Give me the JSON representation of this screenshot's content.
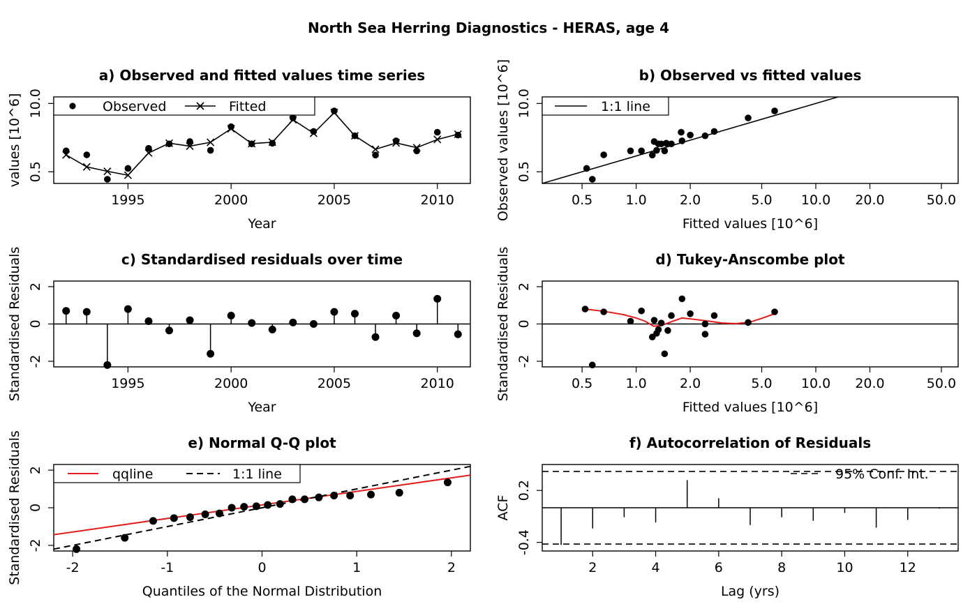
{
  "main_title": "North Sea Herring Diagnostics - HERAS, age 4",
  "chart_data": [
    {
      "id": "a",
      "type": "line",
      "title": "a) Observed and fitted values time series",
      "xlabel": "Year",
      "ylabel": "values [10^6]",
      "y_scale": "log",
      "xlim": [
        1991.4,
        2011.6
      ],
      "ylim": [
        0.3,
        13.3
      ],
      "xticks": [
        1995,
        2000,
        2005,
        2010
      ],
      "yticks": [
        0.5,
        10.0
      ],
      "ytick_labels": [
        "0.5",
        "10.0"
      ],
      "x": [
        1992,
        1993,
        1994,
        1995,
        1996,
        1997,
        1998,
        1999,
        2000,
        2001,
        2002,
        2003,
        2004,
        2005,
        2006,
        2007,
        2008,
        2009,
        2010,
        2011
      ],
      "series": [
        {
          "name": "Observed",
          "marker": "point",
          "values": [
            1.25,
            1.05,
            0.36,
            0.58,
            1.4,
            1.7,
            1.88,
            1.28,
            3.6,
            1.7,
            1.75,
            5.3,
            2.93,
            7.2,
            2.42,
            1.04,
            1.94,
            1.25,
            2.83,
            2.5
          ]
        },
        {
          "name": "Fitted",
          "marker": "x",
          "values": [
            1.05,
            0.62,
            0.51,
            0.43,
            1.14,
            1.75,
            1.54,
            1.82,
            3.3,
            1.72,
            1.83,
            4.9,
            2.71,
            6.7,
            2.42,
            1.34,
            1.77,
            1.44,
            2.06,
            2.6
          ]
        }
      ],
      "legend": {
        "position": "top-left",
        "entries": [
          "Observed",
          "Fitted"
        ]
      }
    },
    {
      "id": "b",
      "type": "scatter",
      "title": "b) Observed vs fitted values",
      "xlabel": "Fitted values [10^6]",
      "ylabel": "Observed values [10^6]",
      "x_scale": "log",
      "y_scale": "log",
      "xlim": [
        0.3,
        62
      ],
      "ylim": [
        0.3,
        13.3
      ],
      "xticks": [
        0.5,
        1.0,
        2.0,
        5.0,
        10.0,
        20.0,
        50.0
      ],
      "xtick_labels": [
        "0.5",
        "1.0",
        "2.0",
        "5.0",
        "10.0",
        "20.0",
        "50.0"
      ],
      "yticks": [
        0.5,
        10.0
      ],
      "ytick_labels": [
        "0.5",
        "10.0"
      ],
      "points": [
        [
          0.53,
          0.58
        ],
        [
          0.57,
          0.36
        ],
        [
          0.66,
          1.05
        ],
        [
          0.93,
          1.25
        ],
        [
          1.07,
          1.25
        ],
        [
          1.23,
          1.04
        ],
        [
          1.26,
          1.88
        ],
        [
          1.3,
          1.28
        ],
        [
          1.33,
          1.7
        ],
        [
          1.38,
          1.7
        ],
        [
          1.44,
          1.25
        ],
        [
          1.47,
          1.75
        ],
        [
          1.57,
          1.7
        ],
        [
          1.8,
          1.94
        ],
        [
          2.0,
          2.5
        ],
        [
          2.42,
          2.42
        ],
        [
          2.72,
          2.93
        ],
        [
          4.2,
          5.3
        ],
        [
          5.9,
          7.2
        ],
        [
          1.78,
          2.83
        ]
      ],
      "reference_line": {
        "name": "1:1 line",
        "slope": 1,
        "intercept": 0
      },
      "legend": {
        "position": "top-left",
        "entries": [
          "1:1 line"
        ]
      }
    },
    {
      "id": "c",
      "type": "bar",
      "style": "stem",
      "title": "c) Standardised residuals over time",
      "xlabel": "Year",
      "ylabel": "Standardised Residuals",
      "xlim": [
        1991.4,
        2011.6
      ],
      "ylim": [
        -2.3,
        2.3
      ],
      "xticks": [
        1995,
        2000,
        2005,
        2010
      ],
      "yticks": [
        -2,
        0,
        2
      ],
      "x": [
        1992,
        1993,
        1994,
        1995,
        1996,
        1997,
        1998,
        1999,
        2000,
        2001,
        2002,
        2003,
        2004,
        2005,
        2006,
        2007,
        2008,
        2009,
        2010,
        2011
      ],
      "values": [
        0.7,
        0.65,
        -2.2,
        0.8,
        0.15,
        -0.35,
        0.2,
        -1.6,
        0.45,
        0.05,
        -0.3,
        0.08,
        0.0,
        0.65,
        0.55,
        -0.7,
        0.45,
        -0.5,
        1.35,
        -0.55
      ]
    },
    {
      "id": "d",
      "type": "scatter",
      "title": "d) Tukey-Anscombe plot",
      "xlabel": "Fitted values [10^6]",
      "ylabel": "Standardised Residuals",
      "x_scale": "log",
      "xlim": [
        0.3,
        62
      ],
      "ylim": [
        -2.3,
        2.3
      ],
      "xticks": [
        0.5,
        1.0,
        2.0,
        5.0,
        10.0,
        20.0,
        50.0
      ],
      "xtick_labels": [
        "0.5",
        "1.0",
        "2.0",
        "5.0",
        "10.0",
        "20.0",
        "50.0"
      ],
      "yticks": [
        -2,
        0,
        2
      ],
      "points": [
        [
          0.52,
          0.8
        ],
        [
          0.57,
          -2.2
        ],
        [
          0.66,
          0.65
        ],
        [
          0.93,
          0.15
        ],
        [
          1.07,
          0.7
        ],
        [
          1.23,
          -0.7
        ],
        [
          1.26,
          0.2
        ],
        [
          1.3,
          -0.5
        ],
        [
          1.33,
          -0.3
        ],
        [
          1.38,
          0.05
        ],
        [
          1.44,
          -1.6
        ],
        [
          1.5,
          -0.35
        ],
        [
          1.57,
          0.45
        ],
        [
          1.8,
          1.35
        ],
        [
          2.0,
          0.55
        ],
        [
          2.42,
          0.0
        ],
        [
          2.42,
          -0.55
        ],
        [
          2.72,
          0.45
        ],
        [
          4.2,
          0.08
        ],
        [
          5.9,
          0.65
        ]
      ],
      "smooth_line": {
        "color": "#e41a1c",
        "x": [
          0.52,
          0.66,
          0.85,
          1.0,
          1.12,
          1.25,
          1.38,
          1.55,
          1.8,
          2.1,
          2.5,
          3.0,
          3.6,
          4.3,
          5.0,
          5.9
        ],
        "y": [
          0.8,
          0.68,
          0.5,
          0.32,
          0.15,
          -0.12,
          -0.08,
          0.1,
          0.32,
          0.25,
          0.16,
          0.05,
          0.02,
          0.1,
          0.3,
          0.55
        ]
      },
      "reference_line": {
        "y": 0
      }
    },
    {
      "id": "e",
      "type": "scatter",
      "title": "e) Normal Q-Q plot",
      "xlabel": "Quantiles of the Normal Distribution",
      "ylabel": "Standardised Residuals",
      "xlim": [
        -2.2,
        2.2
      ],
      "ylim": [
        -2.3,
        2.3
      ],
      "xticks": [
        -2,
        -1,
        0,
        1,
        2
      ],
      "yticks": [
        -2,
        0,
        2
      ],
      "points": [
        [
          -1.96,
          -2.2
        ],
        [
          -1.45,
          -1.6
        ],
        [
          -1.15,
          -0.7
        ],
        [
          -0.93,
          -0.55
        ],
        [
          -0.76,
          -0.5
        ],
        [
          -0.6,
          -0.35
        ],
        [
          -0.45,
          -0.3
        ],
        [
          -0.32,
          0.0
        ],
        [
          -0.19,
          0.05
        ],
        [
          -0.06,
          0.08
        ],
        [
          0.06,
          0.15
        ],
        [
          0.19,
          0.2
        ],
        [
          0.32,
          0.45
        ],
        [
          0.45,
          0.45
        ],
        [
          0.6,
          0.55
        ],
        [
          0.76,
          0.65
        ],
        [
          0.93,
          0.65
        ],
        [
          1.15,
          0.7
        ],
        [
          1.45,
          0.8
        ],
        [
          1.96,
          1.35
        ]
      ],
      "lines": [
        {
          "name": "qqline",
          "color": "#e41a1c",
          "dash": false,
          "slope": 0.72,
          "intercept": 0.15
        },
        {
          "name": "1:1 line",
          "color": "#000000",
          "dash": true,
          "slope": 1,
          "intercept": 0
        }
      ],
      "legend": {
        "position": "top-left",
        "entries": [
          "qqline",
          "1:1 line"
        ]
      }
    },
    {
      "id": "f",
      "type": "bar",
      "style": "stem",
      "title": "f) Autocorrelation of Residuals",
      "xlabel": "Lag (yrs)",
      "ylabel": "ACF",
      "xlim": [
        0.4,
        13.6
      ],
      "ylim": [
        -0.5,
        0.5
      ],
      "xticks": [
        2,
        4,
        6,
        8,
        10,
        12
      ],
      "yticks": [
        -0.4,
        0.2
      ],
      "ytick_labels": [
        "-0.4",
        "0.2"
      ],
      "x": [
        1,
        2,
        3,
        4,
        5,
        6,
        7,
        8,
        9,
        10,
        11,
        12,
        13
      ],
      "values": [
        -0.43,
        -0.24,
        -0.11,
        -0.17,
        0.32,
        0.11,
        -0.2,
        -0.11,
        -0.15,
        -0.06,
        -0.23,
        -0.14,
        -0.01
      ],
      "conf_int": {
        "name": "95% Conf. Int.",
        "upper": 0.42,
        "lower": -0.42
      },
      "legend": {
        "position": "top-right",
        "entries": [
          "95% Conf. Int."
        ]
      }
    }
  ]
}
